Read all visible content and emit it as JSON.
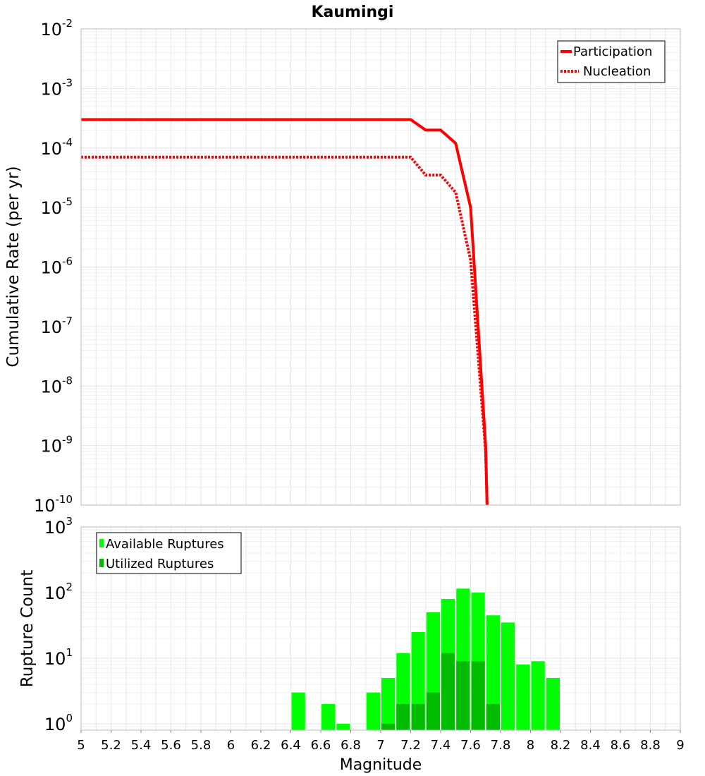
{
  "chart_data": [
    {
      "type": "line",
      "title": "Kaumingi",
      "xlabel": "",
      "ylabel": "Cumulative Rate (per yr)",
      "yscale": "log",
      "xlim": [
        5,
        9
      ],
      "ylim": [
        1e-10,
        0.01
      ],
      "y_tick_labels": [
        {
          "base": "10",
          "exp": "-10"
        },
        {
          "base": "10",
          "exp": "-9"
        },
        {
          "base": "10",
          "exp": "-8"
        },
        {
          "base": "10",
          "exp": "-7"
        },
        {
          "base": "10",
          "exp": "-6"
        },
        {
          "base": "10",
          "exp": "-5"
        },
        {
          "base": "10",
          "exp": "-4"
        },
        {
          "base": "10",
          "exp": "-3"
        },
        {
          "base": "10",
          "exp": "-2"
        }
      ],
      "legend_position": "top-right",
      "series": [
        {
          "name": "Participation",
          "style": "solid",
          "color": "#ff0000",
          "x": [
            5.0,
            7.2,
            7.3,
            7.4,
            7.5,
            7.6,
            7.7,
            7.71
          ],
          "y": [
            0.0003,
            0.0003,
            0.0002,
            0.0002,
            0.00012,
            1e-05,
            1e-09,
            1e-10
          ]
        },
        {
          "name": "Nucleation",
          "style": "dotted",
          "color": "#ff0000",
          "x": [
            5.0,
            7.2,
            7.3,
            7.4,
            7.5,
            7.6,
            7.7,
            7.71
          ],
          "y": [
            7e-05,
            7e-05,
            3.5e-05,
            3.5e-05,
            1.8e-05,
            1.3e-06,
            8e-10,
            1e-10
          ]
        }
      ]
    },
    {
      "type": "bar",
      "title": "",
      "xlabel": "Magnitude",
      "ylabel": "Rupture Count",
      "yscale": "log",
      "xlim": [
        5,
        9
      ],
      "ylim": [
        0.8,
        1000
      ],
      "x_tick_labels": [
        "5",
        "5.2",
        "5.4",
        "5.6",
        "5.8",
        "6",
        "6.2",
        "6.4",
        "6.6",
        "6.8",
        "7",
        "7.2",
        "7.4",
        "7.6",
        "7.8",
        "8",
        "8.2",
        "8.4",
        "8.6",
        "8.8",
        "9"
      ],
      "y_tick_labels": [
        {
          "base": "10",
          "exp": "0"
        },
        {
          "base": "10",
          "exp": "1"
        },
        {
          "base": "10",
          "exp": "2"
        },
        {
          "base": "10",
          "exp": "3"
        }
      ],
      "legend_position": "top-left",
      "bin_width": 0.1,
      "series": [
        {
          "name": "Available Ruptures",
          "color": "#00ff00",
          "x": [
            6.45,
            6.65,
            6.75,
            6.95,
            7.05,
            7.15,
            7.25,
            7.35,
            7.45,
            7.55,
            7.65,
            7.75,
            7.85,
            7.95,
            8.05,
            8.15
          ],
          "values": [
            3,
            2,
            1,
            3,
            5,
            12,
            25,
            50,
            80,
            115,
            100,
            45,
            35,
            8,
            9,
            5
          ]
        },
        {
          "name": "Utilized Ruptures",
          "color": "#00bb00",
          "x": [
            7.05,
            7.15,
            7.25,
            7.35,
            7.45,
            7.55,
            7.65,
            7.75
          ],
          "values": [
            1,
            2,
            2,
            3,
            12,
            9,
            9,
            2
          ]
        }
      ]
    }
  ]
}
